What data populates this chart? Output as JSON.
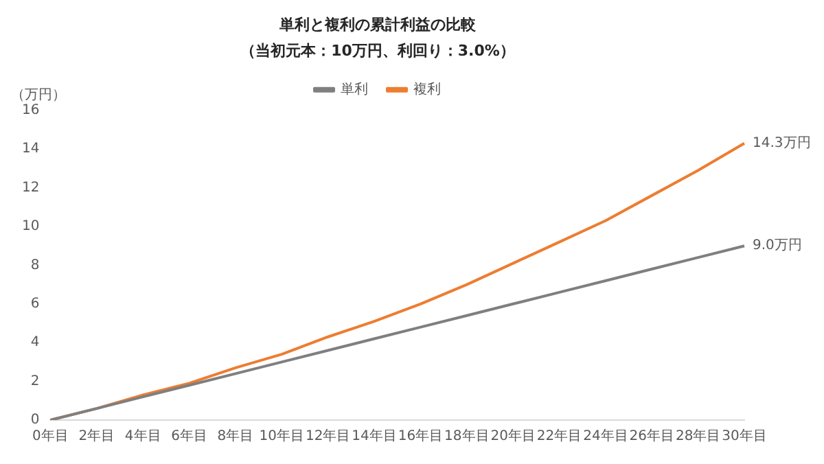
{
  "chart_data": {
    "type": "line",
    "title": "単利と複利の累計利益の比較",
    "subtitle": "（当初元本：10万円、利回り：3.0%）",
    "ylabel": "（万円）",
    "categories": [
      "0年目",
      "2年目",
      "4年目",
      "6年目",
      "8年目",
      "10年目",
      "12年目",
      "14年目",
      "16年目",
      "18年目",
      "20年目",
      "22年目",
      "24年目",
      "26年目",
      "28年目",
      "30年目"
    ],
    "series": [
      {
        "name": "単利",
        "color": "#7f7f7f",
        "values": [
          0,
          0.6,
          1.2,
          1.8,
          2.4,
          3.0,
          3.6,
          4.2,
          4.8,
          5.4,
          6.0,
          6.6,
          7.2,
          7.8,
          8.4,
          9.0
        ],
        "value_labels": [
          null,
          null,
          null,
          null,
          null,
          null,
          null,
          null,
          null,
          null,
          null,
          null,
          null,
          null,
          null,
          "9.0万円"
        ]
      },
      {
        "name": "複利",
        "color": "#ed7d31",
        "values": [
          0,
          0.6,
          1.3,
          1.9,
          2.7,
          3.4,
          4.3,
          5.1,
          6.0,
          7.0,
          8.1,
          9.2,
          10.3,
          11.6,
          12.9,
          14.3
        ],
        "value_labels": [
          null,
          null,
          null,
          null,
          null,
          null,
          null,
          null,
          null,
          null,
          null,
          null,
          null,
          null,
          null,
          "14.3万円"
        ]
      }
    ],
    "ylim": [
      0,
      16
    ],
    "yticks": [
      0,
      2,
      4,
      6,
      8,
      10,
      12,
      14,
      16
    ],
    "grid": false,
    "legend": "top",
    "marker": "none",
    "line_style": "solid"
  }
}
